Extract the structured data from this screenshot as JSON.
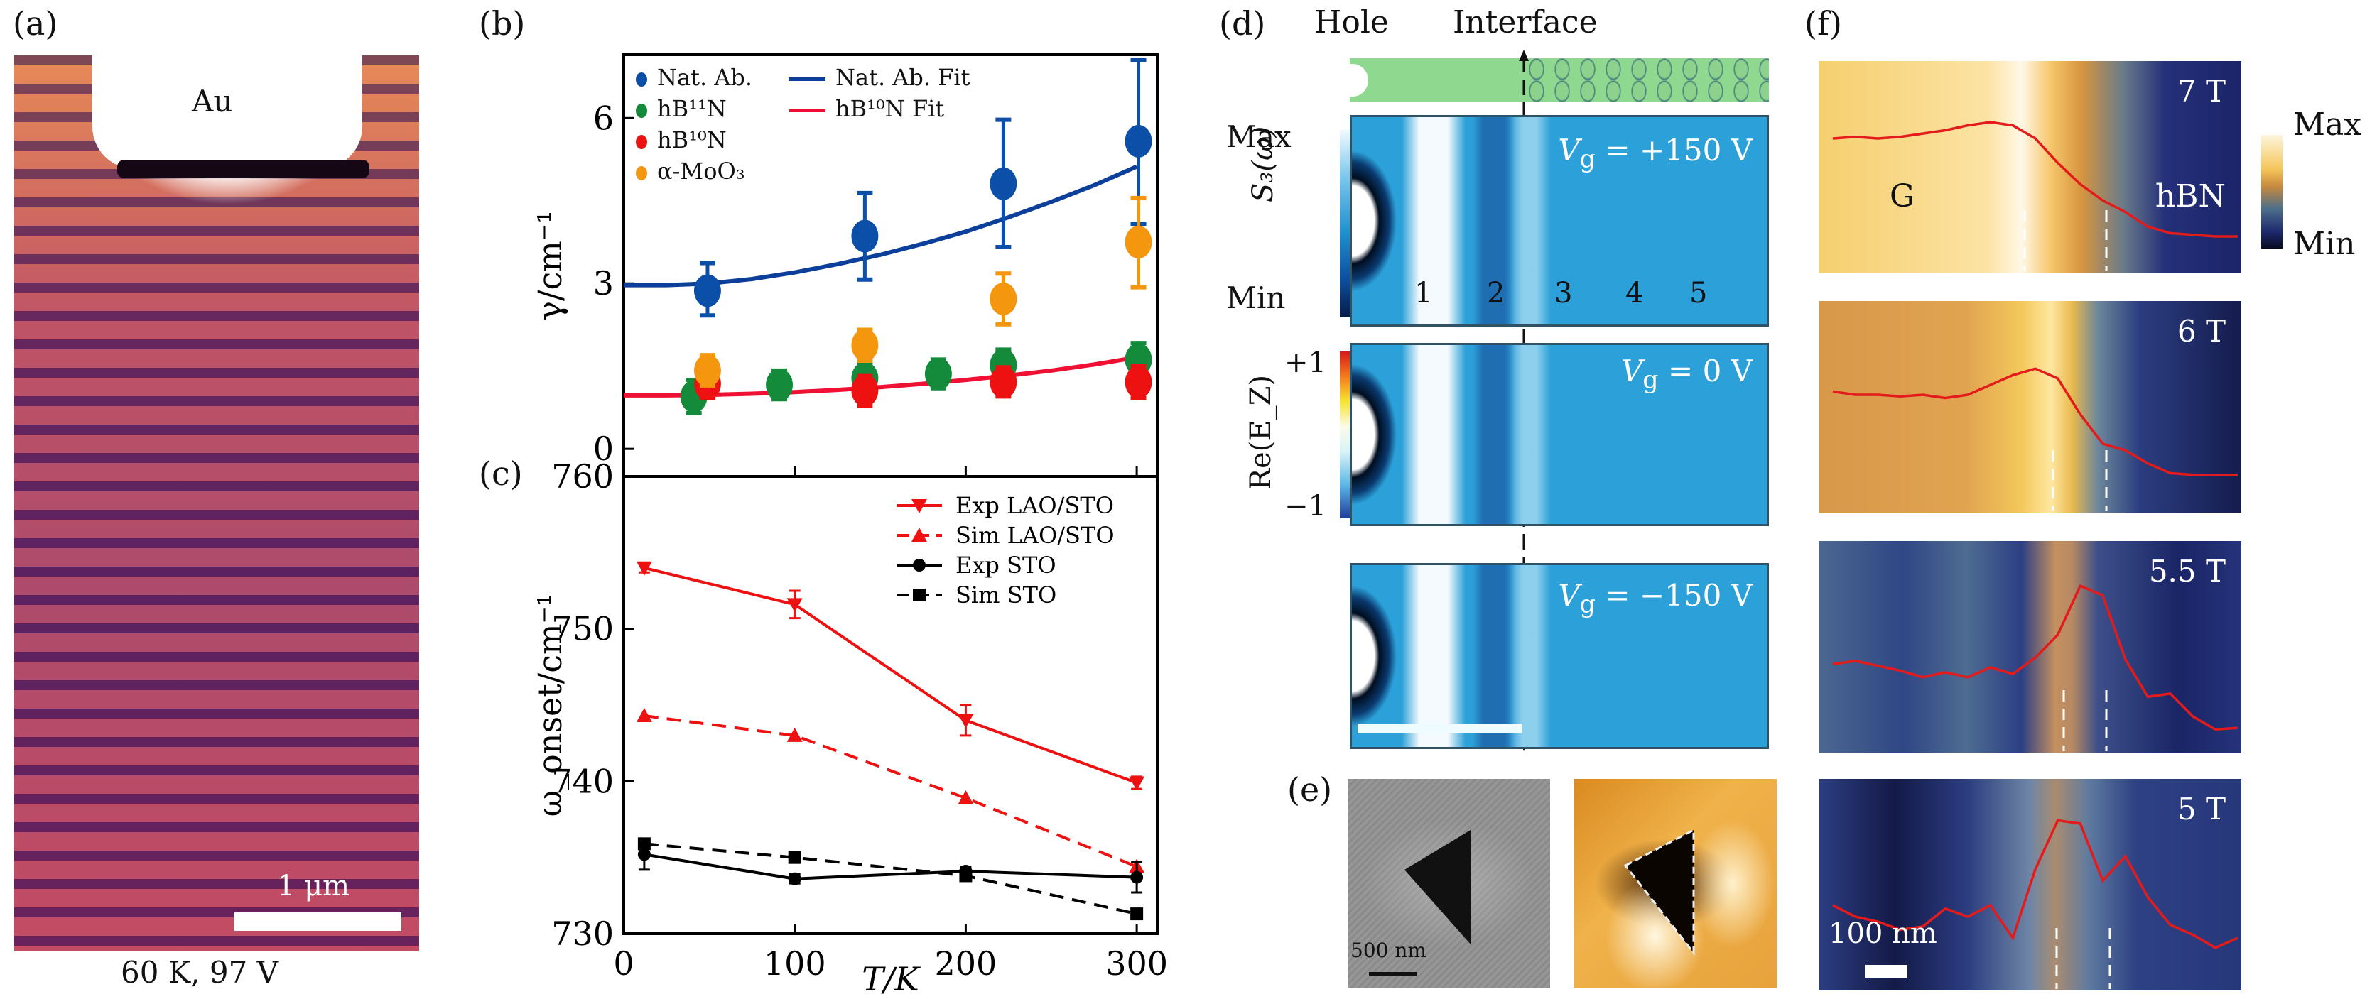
{
  "figure": {
    "panel_labels": {
      "a": "(a)",
      "b": "(b)",
      "c": "(c)",
      "d": "(d)",
      "e": "(e)",
      "f": "(f)"
    }
  },
  "panel_a": {
    "material_label": "Au",
    "scale_bar_label": "1 μm",
    "caption": "60 K, 97 V"
  },
  "panel_b": {
    "ylabel": "γ/cm⁻¹",
    "yticks": [
      "0",
      "3",
      "6"
    ],
    "legend": [
      {
        "label": "Nat. Ab.",
        "kind": "marker",
        "color": "#0b4fa8"
      },
      {
        "label": "hB¹¹N",
        "kind": "marker",
        "color": "#148a3b"
      },
      {
        "label": "hB¹⁰N",
        "kind": "marker",
        "color": "#ee1111"
      },
      {
        "label": "α-MoO₃",
        "kind": "marker",
        "color": "#f5960f"
      },
      {
        "label": "Nat. Ab. Fit",
        "kind": "line",
        "color": "#0b3f9a"
      },
      {
        "label": "hB¹⁰N Fit",
        "kind": "line",
        "color": "#ee1133"
      }
    ]
  },
  "panel_c": {
    "ylabel": "ω_onset/cm⁻¹",
    "xlabel": "T/K",
    "xticks": [
      "0",
      "100",
      "200",
      "300"
    ],
    "yticks": [
      "730",
      "740",
      "750",
      "760"
    ],
    "legend": [
      "Exp LAO/STO",
      "Sim LAO/STO",
      "Exp STO",
      "Sim STO"
    ]
  },
  "panel_d": {
    "header_hole": "Hole",
    "header_interface": "Interface",
    "colorbar_s3": {
      "max": "Max",
      "min": "Min",
      "label": "S₃(ω)"
    },
    "colorbar_re": {
      "max": "+1",
      "min": "−1",
      "label": "Re(E_Z)"
    },
    "fringe_numbers": [
      "1",
      "2",
      "3",
      "4",
      "5"
    ],
    "maps": [
      {
        "gate": "V_g = +150 V",
        "gate_prefix": "V",
        "gate_sub": "g",
        "gate_rest": " = +150 V"
      },
      {
        "gate": "V_g = 0 V",
        "gate_prefix": "V",
        "gate_sub": "g",
        "gate_rest": " = 0 V"
      },
      {
        "gate": "V_g = −150 V",
        "gate_prefix": "V",
        "gate_sub": "g",
        "gate_rest": " = −150 V"
      }
    ]
  },
  "panel_e": {
    "scale_bar_label": "500 nm"
  },
  "panel_f": {
    "colorbar": {
      "max": "Max",
      "min": "Min"
    },
    "region_labels": {
      "left": "G",
      "right": "hBN"
    },
    "scale_bar_label": "100 nm",
    "maps": [
      {
        "field": "7 T",
        "profile": [
          0.7,
          0.71,
          0.7,
          0.71,
          0.73,
          0.75,
          0.78,
          0.8,
          0.78,
          0.7,
          0.55,
          0.42,
          0.32,
          0.25,
          0.16,
          0.12,
          0.11,
          0.1,
          0.1
        ]
      },
      {
        "field": "6 T",
        "profile": [
          0.62,
          0.6,
          0.6,
          0.59,
          0.6,
          0.58,
          0.6,
          0.66,
          0.72,
          0.76,
          0.7,
          0.48,
          0.3,
          0.26,
          0.18,
          0.12,
          0.11,
          0.11,
          0.11
        ]
      },
      {
        "field": "5.5 T",
        "profile": [
          0.42,
          0.44,
          0.41,
          0.38,
          0.34,
          0.37,
          0.34,
          0.4,
          0.36,
          0.46,
          0.6,
          0.9,
          0.84,
          0.45,
          0.22,
          0.24,
          0.1,
          0.02,
          0.03
        ]
      },
      {
        "field": "5 T",
        "profile": [
          0.4,
          0.33,
          0.3,
          0.25,
          0.27,
          0.38,
          0.33,
          0.4,
          0.2,
          0.62,
          0.92,
          0.9,
          0.55,
          0.7,
          0.45,
          0.28,
          0.22,
          0.14,
          0.2
        ]
      }
    ]
  },
  "chart_data": [
    {
      "type": "scatter",
      "panel": "b",
      "title": "",
      "xlabel": "",
      "ylabel": "γ/cm⁻¹",
      "xlim": [
        0,
        312
      ],
      "ylim": [
        -0.5,
        7.15
      ],
      "yticks": [
        0,
        3,
        6
      ],
      "xticks": [
        0,
        100,
        200,
        300
      ],
      "legend_position": "top-left",
      "series": [
        {
          "name": "Nat. Ab.",
          "color": "#0b4fa8",
          "x": [
            49,
            141,
            222,
            301
          ],
          "y": [
            2.87,
            3.86,
            4.81,
            5.58
          ],
          "err_low": [
            2.42,
            3.07,
            3.66,
            4.08
          ],
          "err_high": [
            3.37,
            4.64,
            5.97,
            7.05
          ]
        },
        {
          "name": "hB¹¹N",
          "color": "#148a3b",
          "x": [
            41,
            91,
            141,
            184,
            222,
            301
          ],
          "y": [
            0.95,
            1.16,
            1.28,
            1.36,
            1.52,
            1.62
          ],
          "err_low": [
            0.65,
            0.9,
            1.0,
            1.1,
            1.25,
            1.35
          ],
          "err_high": [
            1.25,
            1.42,
            1.56,
            1.62,
            1.8,
            1.92
          ]
        },
        {
          "name": "hB¹⁰N",
          "color": "#ee1111",
          "x": [
            49,
            141,
            222,
            301
          ],
          "y": [
            1.18,
            1.06,
            1.21,
            1.21
          ],
          "err_low": [
            0.92,
            0.78,
            0.95,
            0.92
          ],
          "err_high": [
            1.45,
            1.32,
            1.48,
            1.5
          ]
        },
        {
          "name": "α-MoO₃",
          "color": "#f5960f",
          "x": [
            49,
            141,
            222,
            301
          ],
          "y": [
            1.42,
            1.88,
            2.72,
            3.75
          ],
          "err_low": [
            1.15,
            1.6,
            2.26,
            2.93
          ],
          "err_high": [
            1.7,
            2.16,
            3.18,
            4.55
          ]
        },
        {
          "name": "Nat. Ab. Fit",
          "type": "line",
          "color": "#0b3f9a",
          "x": [
            0,
            25,
            50,
            75,
            100,
            125,
            150,
            175,
            200,
            225,
            250,
            275,
            300
          ],
          "y": [
            2.97,
            2.97,
            3.0,
            3.08,
            3.2,
            3.35,
            3.52,
            3.72,
            3.94,
            4.2,
            4.48,
            4.78,
            5.12
          ]
        },
        {
          "name": "hB¹⁰N Fit",
          "type": "line",
          "color": "#ee1133",
          "x": [
            0,
            25,
            50,
            75,
            100,
            125,
            150,
            175,
            200,
            225,
            250,
            275,
            300
          ],
          "y": [
            0.97,
            0.97,
            0.98,
            1.0,
            1.03,
            1.07,
            1.12,
            1.18,
            1.25,
            1.33,
            1.42,
            1.53,
            1.66
          ]
        }
      ]
    },
    {
      "type": "line",
      "panel": "c",
      "title": "",
      "xlabel": "T/K",
      "ylabel": "ω_onset/cm⁻¹",
      "xlim": [
        0,
        312
      ],
      "ylim": [
        730,
        760
      ],
      "xticks": [
        0,
        100,
        200,
        300
      ],
      "yticks": [
        730,
        740,
        750,
        760
      ],
      "legend_position": "top-right",
      "series": [
        {
          "name": "Exp LAO/STO",
          "color": "#ee1111",
          "dash": false,
          "marker": "triangle-down",
          "x": [
            12,
            100,
            200,
            300
          ],
          "y": [
            754.0,
            751.6,
            744.0,
            739.9
          ],
          "err": [
            0.3,
            0.9,
            1.0,
            0.4
          ]
        },
        {
          "name": "Sim LAO/STO",
          "color": "#ee1111",
          "dash": true,
          "marker": "triangle-up",
          "x": [
            12,
            100,
            200,
            300
          ],
          "y": [
            744.3,
            743.0,
            738.9,
            734.4
          ],
          "err": [
            0,
            0,
            0,
            0
          ]
        },
        {
          "name": "Exp STO",
          "color": "#000000",
          "dash": false,
          "marker": "circle",
          "x": [
            12,
            100,
            200,
            300
          ],
          "y": [
            735.2,
            733.6,
            734.1,
            733.7
          ],
          "err": [
            1.0,
            0.3,
            0.3,
            1.0
          ]
        },
        {
          "name": "Sim STO",
          "color": "#000000",
          "dash": true,
          "marker": "square",
          "x": [
            12,
            100,
            200,
            300
          ],
          "y": [
            735.9,
            735.0,
            733.8,
            731.3
          ],
          "err": [
            0,
            0,
            0,
            0
          ]
        }
      ]
    }
  ]
}
